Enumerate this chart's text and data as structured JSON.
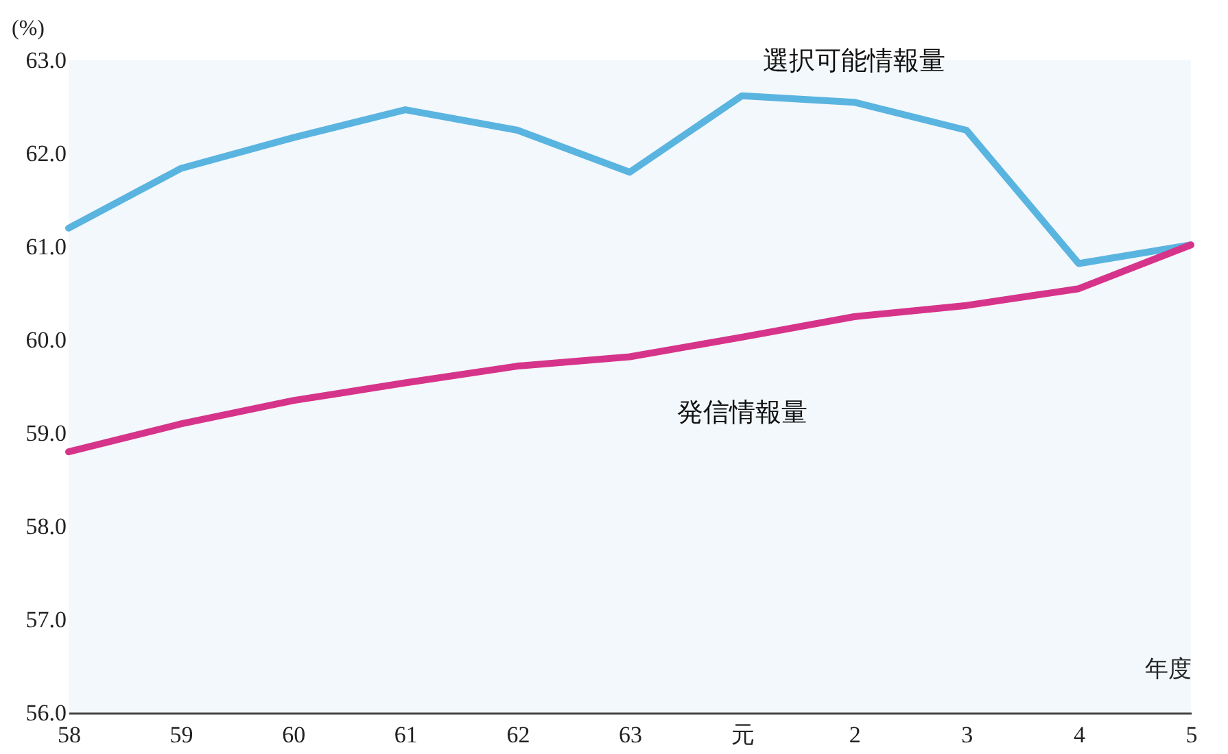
{
  "chart_data": {
    "type": "line",
    "ylabel": "(%)",
    "xlabel": "年度",
    "categories": [
      "58",
      "59",
      "60",
      "61",
      "62",
      "63",
      "元",
      "2",
      "3",
      "4",
      "5"
    ],
    "ylim": [
      56,
      63
    ],
    "yticks": [
      {
        "value": 56,
        "label": "56.0"
      },
      {
        "value": 57,
        "label": "57.0"
      },
      {
        "value": 58,
        "label": "58.0"
      },
      {
        "value": 59,
        "label": "59.0"
      },
      {
        "value": 60,
        "label": "60.0"
      },
      {
        "value": 61,
        "label": "61.0"
      },
      {
        "value": 62,
        "label": "62.0"
      },
      {
        "value": 63,
        "label": "63.0"
      }
    ],
    "grid": false,
    "marker": "none",
    "line_style": "solid",
    "series": [
      {
        "name": "選択可能情報量",
        "color": "#5ab4e0",
        "values": [
          61.2,
          61.84,
          62.17,
          62.47,
          62.25,
          61.8,
          62.62,
          62.55,
          62.25,
          60.82,
          61.02
        ]
      },
      {
        "name": "発信情報量",
        "color": "#d6348a",
        "values": [
          58.8,
          59.1,
          59.35,
          59.54,
          59.72,
          59.82,
          60.03,
          60.25,
          60.37,
          60.55,
          61.02
        ]
      }
    ]
  }
}
